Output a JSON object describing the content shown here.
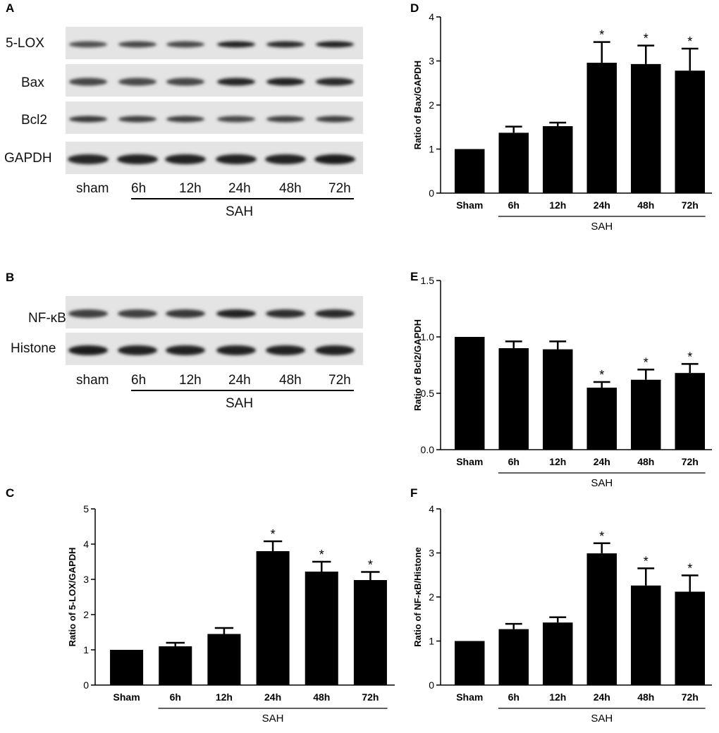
{
  "panels": {
    "A": "A",
    "B": "B",
    "C": "C",
    "D": "D",
    "E": "E",
    "F": "F"
  },
  "blot_A": {
    "rows": [
      "5-LOX",
      "Bax",
      "Bcl2",
      "GAPDH"
    ],
    "lanes": [
      "sham",
      "6h",
      "12h",
      "24h",
      "48h",
      "72h"
    ],
    "group": "SAH"
  },
  "blot_B": {
    "rows": [
      "NF-κB",
      "Histone"
    ],
    "lanes": [
      "sham",
      "6h",
      "12h",
      "24h",
      "48h",
      "72h"
    ],
    "group": "SAH"
  },
  "chart_data": [
    {
      "panel": "C",
      "type": "bar",
      "categories": [
        "Sham",
        "6h",
        "12h",
        "24h",
        "48h",
        "72h"
      ],
      "values": [
        1.0,
        1.1,
        1.45,
        3.8,
        3.22,
        2.98
      ],
      "errors": [
        0,
        0.1,
        0.17,
        0.28,
        0.28,
        0.23
      ],
      "significant": [
        false,
        false,
        false,
        true,
        true,
        true
      ],
      "marker": "*",
      "ylabel": "Ratio of 5-LOX/GAPDH",
      "ylim": [
        0,
        5
      ],
      "yticks": [
        "0",
        "1",
        "2",
        "3",
        "4",
        "5"
      ],
      "group_label": "SAH"
    },
    {
      "panel": "D",
      "type": "bar",
      "categories": [
        "Sham",
        "6h",
        "12h",
        "24h",
        "48h",
        "72h"
      ],
      "values": [
        1.0,
        1.37,
        1.52,
        2.96,
        2.93,
        2.78
      ],
      "errors": [
        0,
        0.14,
        0.08,
        0.47,
        0.42,
        0.5
      ],
      "significant": [
        false,
        false,
        false,
        true,
        true,
        true
      ],
      "marker": "*",
      "ylabel": "Ratio of Bax/GAPDH",
      "ylim": [
        0,
        4
      ],
      "yticks": [
        "0",
        "1",
        "2",
        "3",
        "4"
      ],
      "group_label": "SAH"
    },
    {
      "panel": "E",
      "type": "bar",
      "categories": [
        "Sham",
        "6h",
        "12h",
        "24h",
        "48h",
        "72h"
      ],
      "values": [
        1.0,
        0.9,
        0.89,
        0.55,
        0.62,
        0.68
      ],
      "errors": [
        0,
        0.06,
        0.07,
        0.05,
        0.09,
        0.08
      ],
      "significant": [
        false,
        false,
        false,
        true,
        true,
        true
      ],
      "marker": "*",
      "ylabel": "Ratio of Bcl2/GAPDH",
      "ylim": [
        0,
        1.5
      ],
      "yticks": [
        "0.0",
        "0.5",
        "1.0",
        "1.5"
      ],
      "group_label": "SAH"
    },
    {
      "panel": "F",
      "type": "bar",
      "categories": [
        "Sham",
        "6h",
        "12h",
        "24h",
        "48h",
        "72h"
      ],
      "values": [
        1.0,
        1.27,
        1.42,
        2.99,
        2.26,
        2.12
      ],
      "errors": [
        0,
        0.12,
        0.12,
        0.23,
        0.39,
        0.37
      ],
      "significant": [
        false,
        false,
        false,
        true,
        true,
        true
      ],
      "marker": "*",
      "ylabel": "Ratio of NF-κB/Histone",
      "ylim": [
        0,
        4
      ],
      "yticks": [
        "0",
        "1",
        "2",
        "3",
        "4"
      ],
      "group_label": "SAH"
    }
  ]
}
